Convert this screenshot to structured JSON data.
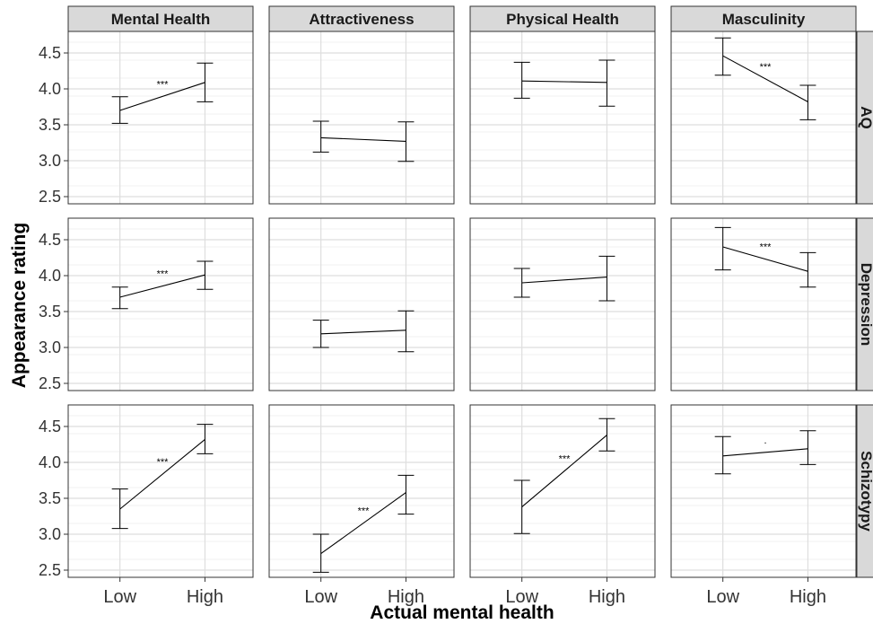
{
  "chart_data": {
    "type": "line",
    "xlabel": "Actual mental health",
    "ylabel": "Appearance rating",
    "x_categories": [
      "Low",
      "High"
    ],
    "ylim": [
      2.4,
      4.8
    ],
    "yticks": [
      2.5,
      3.0,
      3.5,
      4.0,
      4.5
    ],
    "ytick_labels": [
      "2.5",
      "3.0",
      "3.5",
      "4.0",
      "4.5"
    ],
    "columns": [
      "Mental Health",
      "Attractiveness",
      "Physical Health",
      "Masculinity"
    ],
    "rows": [
      "AQ",
      "Depression",
      "Schizotypy"
    ],
    "grid": true,
    "panels": [
      {
        "row": "AQ",
        "column": "Mental Health",
        "values": [
          3.7,
          4.09
        ],
        "error_low": [
          3.52,
          3.82
        ],
        "error_high": [
          3.89,
          4.36
        ],
        "significance": "***"
      },
      {
        "row": "AQ",
        "column": "Attractiveness",
        "values": [
          3.32,
          3.27
        ],
        "error_low": [
          3.12,
          2.99
        ],
        "error_high": [
          3.55,
          3.54
        ],
        "significance": ""
      },
      {
        "row": "AQ",
        "column": "Physical Health",
        "values": [
          4.11,
          4.09
        ],
        "error_low": [
          3.87,
          3.76
        ],
        "error_high": [
          4.37,
          4.4
        ],
        "significance": ""
      },
      {
        "row": "AQ",
        "column": "Masculinity",
        "values": [
          4.46,
          3.82
        ],
        "error_low": [
          4.19,
          3.57
        ],
        "error_high": [
          4.71,
          4.05
        ],
        "significance": "***"
      },
      {
        "row": "Depression",
        "column": "Mental Health",
        "values": [
          3.7,
          4.01
        ],
        "error_low": [
          3.54,
          3.81
        ],
        "error_high": [
          3.84,
          4.2
        ],
        "significance": "***"
      },
      {
        "row": "Depression",
        "column": "Attractiveness",
        "values": [
          3.19,
          3.24
        ],
        "error_low": [
          3.0,
          2.94
        ],
        "error_high": [
          3.38,
          3.51
        ],
        "significance": ""
      },
      {
        "row": "Depression",
        "column": "Physical Health",
        "values": [
          3.9,
          3.98
        ],
        "error_low": [
          3.7,
          3.65
        ],
        "error_high": [
          4.1,
          4.27
        ],
        "significance": ""
      },
      {
        "row": "Depression",
        "column": "Masculinity",
        "values": [
          4.4,
          4.06
        ],
        "error_low": [
          4.08,
          3.84
        ],
        "error_high": [
          4.67,
          4.32
        ],
        "significance": "***"
      },
      {
        "row": "Schizotypy",
        "column": "Mental Health",
        "values": [
          3.35,
          4.32
        ],
        "error_low": [
          3.08,
          4.12
        ],
        "error_high": [
          3.63,
          4.53
        ],
        "significance": "***"
      },
      {
        "row": "Schizotypy",
        "column": "Attractiveness",
        "values": [
          2.73,
          3.58
        ],
        "error_low": [
          2.47,
          3.28
        ],
        "error_high": [
          3.0,
          3.82
        ],
        "significance": "***"
      },
      {
        "row": "Schizotypy",
        "column": "Physical Health",
        "values": [
          3.38,
          4.38
        ],
        "error_low": [
          3.01,
          4.16
        ],
        "error_high": [
          3.75,
          4.61
        ],
        "significance": "***"
      },
      {
        "row": "Schizotypy",
        "column": "Masculinity",
        "values": [
          4.09,
          4.19
        ],
        "error_low": [
          3.84,
          3.97
        ],
        "error_high": [
          4.36,
          4.44
        ],
        "significance": "."
      }
    ]
  }
}
